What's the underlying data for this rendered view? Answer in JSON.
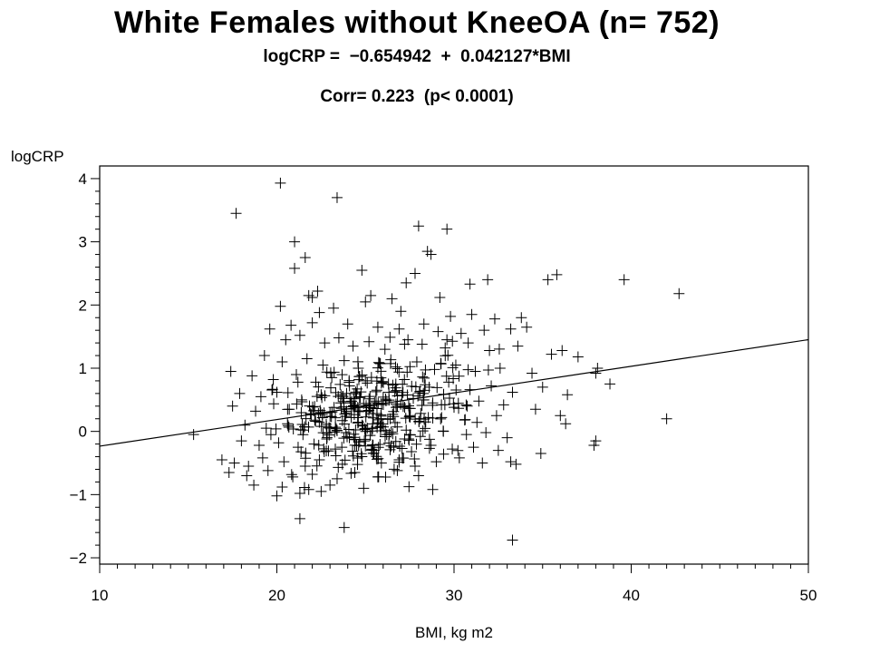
{
  "title": "White Females without KneeOA (n= 752)",
  "equation": "logCRP =  −0.654942  +  0.042127*BMI",
  "correlation": "Corr= 0.223  (p< 0.0001)",
  "colors": {
    "foreground": "#000000",
    "background": "#ffffff"
  },
  "chart_data": {
    "type": "scatter",
    "marker": "plus",
    "title": "White Females without KneeOA (n= 752)",
    "subtitle": "logCRP =  −0.654942  +  0.042127*BMI",
    "annotation": "Corr= 0.223  (p< 0.0001)",
    "xlabel": "BMI,  kg m2",
    "ylabel": "logCRP",
    "xlim": [
      10,
      50
    ],
    "ylim": [
      -2.1,
      4.2
    ],
    "xticks": [
      10,
      20,
      30,
      40,
      50
    ],
    "yticks": [
      -2,
      -1,
      0,
      1,
      2,
      3,
      4
    ],
    "xtick_labels": [
      "10",
      "20",
      "30",
      "40",
      "50"
    ],
    "ytick_labels": [
      "−2",
      "−1",
      "0",
      "1",
      "2",
      "3",
      "4"
    ],
    "fit_line": {
      "intercept": -0.654942,
      "slope": 0.042127,
      "x_range": [
        10,
        50
      ]
    },
    "grid": false,
    "points": [
      [
        20.2,
        3.93
      ],
      [
        23.4,
        3.7
      ],
      [
        17.7,
        3.45
      ],
      [
        28.0,
        3.25
      ],
      [
        29.6,
        3.2
      ],
      [
        21.0,
        3.0
      ],
      [
        28.5,
        2.85
      ],
      [
        28.7,
        2.8
      ],
      [
        21.6,
        2.75
      ],
      [
        21.0,
        2.58
      ],
      [
        24.8,
        2.55
      ],
      [
        27.8,
        2.5
      ],
      [
        35.8,
        2.48
      ],
      [
        35.3,
        2.4
      ],
      [
        39.6,
        2.4
      ],
      [
        31.9,
        2.4
      ],
      [
        27.3,
        2.35
      ],
      [
        30.9,
        2.33
      ],
      [
        42.7,
        2.18
      ],
      [
        22.3,
        2.22
      ],
      [
        21.8,
        2.15
      ],
      [
        22.0,
        2.12
      ],
      [
        25.3,
        2.15
      ],
      [
        26.5,
        2.1
      ],
      [
        25.0,
        2.05
      ],
      [
        29.2,
        2.12
      ],
      [
        20.2,
        1.98
      ],
      [
        23.2,
        1.95
      ],
      [
        22.4,
        1.88
      ],
      [
        27.0,
        1.9
      ],
      [
        29.8,
        1.82
      ],
      [
        31.0,
        1.85
      ],
      [
        32.3,
        1.78
      ],
      [
        33.8,
        1.8
      ],
      [
        19.6,
        1.62
      ],
      [
        20.8,
        1.68
      ],
      [
        22.0,
        1.72
      ],
      [
        24.0,
        1.7
      ],
      [
        25.7,
        1.65
      ],
      [
        26.9,
        1.62
      ],
      [
        28.3,
        1.7
      ],
      [
        29.1,
        1.58
      ],
      [
        30.4,
        1.55
      ],
      [
        31.7,
        1.6
      ],
      [
        33.2,
        1.62
      ],
      [
        34.1,
        1.65
      ],
      [
        20.5,
        1.45
      ],
      [
        21.3,
        1.52
      ],
      [
        22.7,
        1.4
      ],
      [
        23.5,
        1.48
      ],
      [
        24.3,
        1.35
      ],
      [
        25.2,
        1.42
      ],
      [
        26.1,
        1.3
      ],
      [
        27.4,
        1.45
      ],
      [
        28.2,
        1.38
      ],
      [
        29.5,
        1.32
      ],
      [
        30.8,
        1.4
      ],
      [
        32.0,
        1.28
      ],
      [
        33.6,
        1.35
      ],
      [
        35.5,
        1.22
      ],
      [
        36.1,
        1.28
      ],
      [
        37.0,
        1.18
      ],
      [
        19.3,
        1.2
      ],
      [
        20.3,
        1.1
      ],
      [
        21.7,
        1.15
      ],
      [
        22.6,
        1.05
      ],
      [
        23.8,
        1.12
      ],
      [
        24.6,
        1.0
      ],
      [
        25.8,
        1.08
      ],
      [
        26.7,
        1.02
      ],
      [
        27.9,
        1.1
      ],
      [
        28.9,
        0.98
      ],
      [
        30.1,
        1.05
      ],
      [
        31.2,
        0.95
      ],
      [
        32.6,
        1.0
      ],
      [
        34.4,
        0.92
      ],
      [
        38.1,
        1.0
      ],
      [
        38.8,
        0.75
      ],
      [
        38.0,
        0.92
      ],
      [
        17.4,
        0.95
      ],
      [
        18.6,
        0.88
      ],
      [
        19.8,
        0.82
      ],
      [
        21.1,
        0.9
      ],
      [
        22.2,
        0.78
      ],
      [
        23.1,
        0.85
      ],
      [
        24.1,
        0.72
      ],
      [
        25.0,
        0.8
      ],
      [
        26.3,
        0.75
      ],
      [
        27.2,
        0.82
      ],
      [
        28.6,
        0.7
      ],
      [
        29.7,
        0.78
      ],
      [
        30.9,
        0.66
      ],
      [
        32.1,
        0.72
      ],
      [
        33.3,
        0.62
      ],
      [
        35.0,
        0.7
      ],
      [
        36.4,
        0.58
      ],
      [
        17.9,
        0.6
      ],
      [
        19.1,
        0.55
      ],
      [
        20.0,
        0.62
      ],
      [
        21.4,
        0.5
      ],
      [
        22.5,
        0.58
      ],
      [
        23.6,
        0.45
      ],
      [
        24.7,
        0.55
      ],
      [
        25.6,
        0.48
      ],
      [
        26.8,
        0.4
      ],
      [
        27.7,
        0.52
      ],
      [
        28.8,
        0.45
      ],
      [
        30.0,
        0.38
      ],
      [
        31.4,
        0.48
      ],
      [
        32.8,
        0.42
      ],
      [
        34.6,
        0.35
      ],
      [
        17.5,
        0.4
      ],
      [
        18.8,
        0.32
      ],
      [
        20.7,
        0.35
      ],
      [
        21.9,
        0.28
      ],
      [
        23.0,
        0.3
      ],
      [
        24.2,
        0.22
      ],
      [
        25.4,
        0.28
      ],
      [
        26.4,
        0.2
      ],
      [
        27.5,
        0.25
      ],
      [
        28.4,
        0.15
      ],
      [
        29.3,
        0.22
      ],
      [
        30.6,
        0.18
      ],
      [
        32.4,
        0.25
      ],
      [
        36.0,
        0.25
      ],
      [
        36.3,
        0.12
      ],
      [
        18.2,
        0.1
      ],
      [
        19.4,
        0.05
      ],
      [
        20.6,
        0.12
      ],
      [
        21.5,
        0.02
      ],
      [
        22.8,
        0.08
      ],
      [
        23.9,
        -0.02
      ],
      [
        25.1,
        0.05
      ],
      [
        26.2,
        -0.05
      ],
      [
        27.3,
        0.02
      ],
      [
        28.1,
        -0.08
      ],
      [
        29.4,
        0.0
      ],
      [
        30.7,
        -0.05
      ],
      [
        31.8,
        -0.02
      ],
      [
        33.0,
        -0.1
      ],
      [
        42.0,
        0.2
      ],
      [
        15.3,
        -0.05
      ],
      [
        18.0,
        -0.15
      ],
      [
        19.0,
        -0.22
      ],
      [
        20.1,
        -0.18
      ],
      [
        21.2,
        -0.25
      ],
      [
        22.1,
        -0.2
      ],
      [
        23.3,
        -0.28
      ],
      [
        24.5,
        -0.22
      ],
      [
        25.5,
        -0.3
      ],
      [
        26.6,
        -0.25
      ],
      [
        27.6,
        -0.32
      ],
      [
        28.7,
        -0.22
      ],
      [
        29.9,
        -0.28
      ],
      [
        31.1,
        -0.25
      ],
      [
        32.5,
        -0.3
      ],
      [
        34.9,
        -0.35
      ],
      [
        38.0,
        -0.15
      ],
      [
        37.9,
        -0.22
      ],
      [
        16.9,
        -0.45
      ],
      [
        17.6,
        -0.5
      ],
      [
        18.4,
        -0.55
      ],
      [
        19.2,
        -0.42
      ],
      [
        20.4,
        -0.48
      ],
      [
        21.6,
        -0.55
      ],
      [
        22.4,
        -0.45
      ],
      [
        23.7,
        -0.52
      ],
      [
        24.8,
        -0.4
      ],
      [
        25.9,
        -0.5
      ],
      [
        26.9,
        -0.45
      ],
      [
        27.8,
        -0.55
      ],
      [
        29.0,
        -0.48
      ],
      [
        30.3,
        -0.42
      ],
      [
        31.6,
        -0.5
      ],
      [
        33.2,
        -0.48
      ],
      [
        33.5,
        -0.52
      ],
      [
        17.3,
        -0.65
      ],
      [
        18.3,
        -0.7
      ],
      [
        19.5,
        -0.62
      ],
      [
        20.9,
        -0.72
      ],
      [
        22.0,
        -0.68
      ],
      [
        23.4,
        -0.75
      ],
      [
        24.4,
        -0.65
      ],
      [
        25.7,
        -0.72
      ],
      [
        26.8,
        -0.62
      ],
      [
        28.0,
        -0.7
      ],
      [
        18.7,
        -0.85
      ],
      [
        20.3,
        -0.88
      ],
      [
        21.8,
        -0.92
      ],
      [
        23.0,
        -0.85
      ],
      [
        24.9,
        -0.9
      ],
      [
        28.8,
        -0.92
      ],
      [
        20.0,
        -1.02
      ],
      [
        21.3,
        -0.98
      ],
      [
        22.5,
        -0.95
      ],
      [
        21.3,
        -1.38
      ],
      [
        23.8,
        -1.52
      ],
      [
        33.3,
        -1.72
      ]
    ]
  },
  "extra_points_seed": 1234
}
